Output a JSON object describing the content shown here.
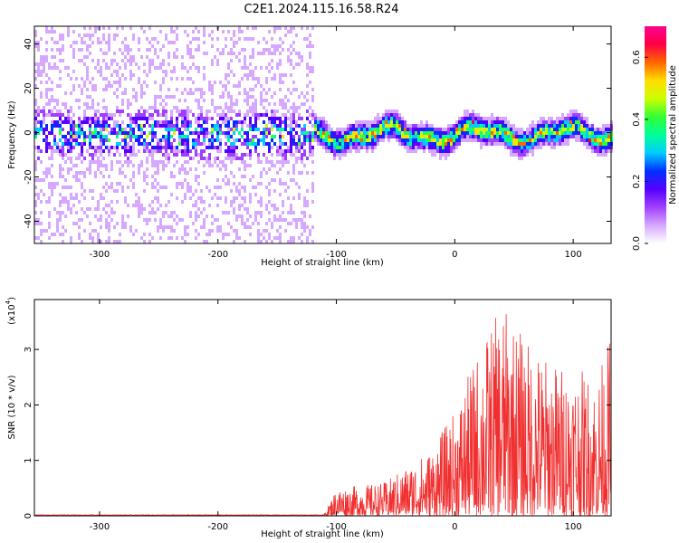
{
  "title": "C2E1.2024.115.16.58.R24",
  "chart_data": [
    {
      "type": "heatmap",
      "xlabel": "Height of straight line (km)",
      "ylabel": "Frequency (Hz)",
      "xlim": [
        -355,
        132
      ],
      "ylim": [
        -50,
        48
      ],
      "xticks": [
        -300,
        -200,
        -100,
        0,
        100
      ],
      "yticks": [
        -40,
        -20,
        0,
        20,
        40
      ],
      "colorbar": {
        "label": "Normalized spectral amplitude",
        "range": [
          0.0,
          0.7
        ],
        "ticks": [
          0.0,
          0.2,
          0.4,
          0.6
        ],
        "colormap": [
          "#ffffff",
          "#d6a8ff",
          "#a040ff",
          "#5500ff",
          "#0030ff",
          "#00ccff",
          "#00ff99",
          "#33ff33",
          "#ccff00",
          "#ffdd00",
          "#ff6600",
          "#ff0044",
          "#ff0090"
        ]
      },
      "description_values": {
        "center_band_hz": [
          -8,
          8
        ],
        "signal_onset_km": -120
      }
    },
    {
      "type": "line",
      "xlabel": "Height of straight line (km)",
      "ylabel": "SNR (10 * v/v)",
      "y_multiplier": "(x10",
      "y_multiplier_exp": "4",
      "y_multiplier_close": ")",
      "xlim": [
        -355,
        132
      ],
      "ylim": [
        0,
        3.9
      ],
      "xticks": [
        -300,
        -200,
        -100,
        0,
        100
      ],
      "yticks": [
        0,
        1,
        2,
        3
      ],
      "color": "#f03030",
      "envelope": {
        "x": [
          -355,
          -110,
          -100,
          -80,
          -60,
          -40,
          -20,
          0,
          20,
          40,
          60,
          80,
          100,
          120,
          132
        ],
        "ymax": [
          0.02,
          0.05,
          0.5,
          0.55,
          0.6,
          0.9,
          1.2,
          1.9,
          3.0,
          3.8,
          3.2,
          2.8,
          2.7,
          2.5,
          3.3
        ]
      }
    }
  ]
}
